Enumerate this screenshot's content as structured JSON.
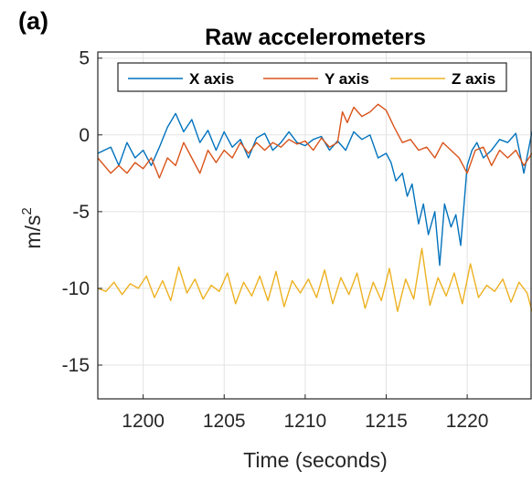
{
  "panel_label": "(a)",
  "chart_data": {
    "type": "line",
    "title": "Raw accelerometers",
    "xlabel": "Time (seconds)",
    "ylabel": "m/s",
    "ylabel_superscript": "2",
    "xlim": [
      1197.2,
      1224
    ],
    "ylim": [
      -17.2,
      5.4
    ],
    "xticks": [
      1200,
      1205,
      1210,
      1215,
      1220
    ],
    "xtick_labels": [
      "1200",
      "1205",
      "1210",
      "1215",
      "1220"
    ],
    "yticks": [
      5,
      0,
      -5,
      -10,
      -15
    ],
    "ytick_labels": [
      "5",
      "0",
      "-5",
      "-10",
      "-15"
    ],
    "grid": true,
    "legend_position": "top",
    "series": [
      {
        "name": "X axis",
        "color": "#0072bd",
        "x": [
          1197.2,
          1198,
          1198.5,
          1199,
          1199.5,
          1200,
          1200.5,
          1201,
          1201.5,
          1202,
          1202.5,
          1203,
          1203.5,
          1204,
          1204.5,
          1205,
          1205.5,
          1206,
          1206.5,
          1207,
          1207.5,
          1208,
          1208.5,
          1209,
          1209.5,
          1210,
          1210.5,
          1211,
          1211.5,
          1212,
          1212.5,
          1213,
          1213.5,
          1214,
          1214.5,
          1215,
          1215.3,
          1215.6,
          1216,
          1216.3,
          1216.6,
          1217,
          1217.3,
          1217.6,
          1218,
          1218.3,
          1218.6,
          1219,
          1219.3,
          1219.6,
          1220,
          1220.3,
          1220.6,
          1221,
          1221.5,
          1222,
          1222.5,
          1223,
          1223.5,
          1224
        ],
        "y": [
          -1.2,
          -0.8,
          -2.0,
          -0.5,
          -1.5,
          -1.0,
          -2.0,
          -0.8,
          0.5,
          1.4,
          0.2,
          1.0,
          -0.5,
          0.3,
          -1.0,
          0.2,
          -0.8,
          -0.3,
          -1.5,
          -0.2,
          0.1,
          -1.0,
          -0.5,
          0.2,
          -0.5,
          -0.7,
          -0.3,
          -0.1,
          -1.0,
          -0.4,
          -1.0,
          0.2,
          -0.3,
          0.0,
          -1.5,
          -1.2,
          -1.8,
          -3.0,
          -2.5,
          -4.0,
          -3.2,
          -5.8,
          -4.5,
          -6.5,
          -5.0,
          -8.5,
          -4.5,
          -6.0,
          -5.2,
          -7.2,
          -2.0,
          -1.0,
          -0.5,
          -1.5,
          -1.0,
          -0.3,
          -0.5,
          0.1,
          -2.5,
          0.2
        ]
      },
      {
        "name": "Y axis",
        "color": "#d95319",
        "x": [
          1197.2,
          1198,
          1198.5,
          1199,
          1199.5,
          1200,
          1200.5,
          1201,
          1201.5,
          1202,
          1202.5,
          1203,
          1203.5,
          1204,
          1204.5,
          1205,
          1205.5,
          1206,
          1206.5,
          1207,
          1207.5,
          1208,
          1208.5,
          1209,
          1209.5,
          1210,
          1210.5,
          1211,
          1211.5,
          1212,
          1212.3,
          1212.6,
          1213,
          1213.5,
          1214,
          1214.5,
          1215,
          1215.5,
          1216,
          1216.5,
          1217,
          1217.5,
          1218,
          1218.5,
          1219,
          1219.5,
          1220,
          1220.5,
          1221,
          1221.5,
          1222,
          1222.5,
          1223,
          1223.5,
          1224
        ],
        "y": [
          -1.5,
          -2.5,
          -2.0,
          -2.5,
          -1.8,
          -2.2,
          -1.5,
          -2.8,
          -1.5,
          -2.0,
          -0.5,
          -1.5,
          -2.5,
          -1.0,
          -1.8,
          -1.0,
          -1.5,
          -0.5,
          -1.2,
          -0.5,
          -1.0,
          -0.5,
          -0.8,
          -0.3,
          -0.6,
          -0.4,
          -1.0,
          -0.2,
          -0.8,
          -0.5,
          1.5,
          0.8,
          1.8,
          1.2,
          1.5,
          2.0,
          1.6,
          0.5,
          -0.5,
          -0.3,
          -1.0,
          -0.8,
          -1.5,
          -0.5,
          -1.0,
          -1.5,
          -2.5,
          -1.0,
          -0.8,
          -2.0,
          -1.0,
          -1.5,
          -1.0,
          -2.0,
          -1.2
        ]
      },
      {
        "name": "Z axis",
        "color": "#edb120",
        "x": [
          1197.2,
          1197.7,
          1198.2,
          1198.7,
          1199.2,
          1199.7,
          1200.2,
          1200.7,
          1201.2,
          1201.7,
          1202.2,
          1202.7,
          1203.2,
          1203.7,
          1204.2,
          1204.7,
          1205.2,
          1205.7,
          1206.2,
          1206.7,
          1207.2,
          1207.7,
          1208.2,
          1208.7,
          1209.2,
          1209.7,
          1210.2,
          1210.7,
          1211.2,
          1211.7,
          1212.2,
          1212.7,
          1213.2,
          1213.7,
          1214.2,
          1214.7,
          1215.2,
          1215.7,
          1216.2,
          1216.7,
          1217.2,
          1217.7,
          1218.2,
          1218.7,
          1219.2,
          1219.7,
          1220.2,
          1220.7,
          1221.2,
          1221.7,
          1222.2,
          1222.7,
          1223.2,
          1223.7,
          1224
        ],
        "y": [
          -10.0,
          -10.2,
          -9.6,
          -10.4,
          -9.7,
          -10.0,
          -9.2,
          -10.6,
          -9.5,
          -10.8,
          -8.6,
          -10.3,
          -9.4,
          -10.7,
          -9.8,
          -10.2,
          -9.0,
          -11.0,
          -9.6,
          -10.5,
          -9.2,
          -10.8,
          -8.9,
          -11.2,
          -9.5,
          -10.3,
          -9.4,
          -10.6,
          -8.8,
          -11.0,
          -9.3,
          -10.4,
          -9.0,
          -11.3,
          -9.6,
          -10.8,
          -8.7,
          -11.5,
          -9.4,
          -10.7,
          -7.4,
          -11.1,
          -9.3,
          -10.5,
          -9.0,
          -11.0,
          -8.4,
          -10.6,
          -9.8,
          -10.2,
          -9.4,
          -10.9,
          -9.6,
          -10.3,
          -11.5
        ]
      }
    ]
  }
}
